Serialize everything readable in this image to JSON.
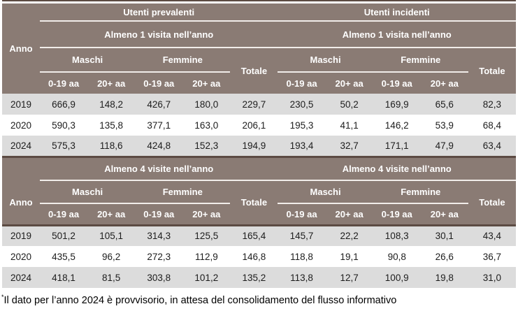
{
  "colors": {
    "header_background": "#8a7b74",
    "dark_rule": "#5c4b43",
    "row_alternate_gray": "#dcdcdc",
    "header_text": "#ffffff",
    "body_text": "#1d1d1d"
  },
  "table": {
    "labels": {
      "anno": "Anno",
      "utenti_prevalenti": "Utenti prevalenti",
      "utenti_incidenti": "Utenti incidenti",
      "maschi": "Maschi",
      "femmine": "Femmine",
      "totale": "Totale",
      "age_0_19": "0-19 aa",
      "age_20_plus": "20+ aa"
    },
    "sections": [
      {
        "visit_label": "Almeno 1 visita nell’anno",
        "rows": [
          {
            "anno": "2019",
            "values": [
              "666,9",
              "148,2",
              "426,7",
              "180,0",
              "229,7",
              "230,5",
              "50,2",
              "169,9",
              "65,6",
              "82,3"
            ]
          },
          {
            "anno": "2020",
            "values": [
              "590,3",
              "135,8",
              "377,1",
              "163,0",
              "206,1",
              "195,3",
              "41,1",
              "146,2",
              "53,9",
              "68,4"
            ]
          },
          {
            "anno": "2024",
            "values": [
              "575,3",
              "118,6",
              "424,8",
              "152,3",
              "194,9",
              "193,4",
              "32,7",
              "171,1",
              "47,9",
              "63,4"
            ]
          }
        ]
      },
      {
        "visit_label": "Almeno 4 visite nell’anno",
        "rows": [
          {
            "anno": "2019",
            "values": [
              "501,2",
              "105,1",
              "314,3",
              "125,5",
              "165,4",
              "145,7",
              "22,2",
              "108,3",
              "30,1",
              "43,4"
            ]
          },
          {
            "anno": "2020",
            "values": [
              "435,5",
              "96,2",
              "272,3",
              "112,9",
              "146,8",
              "118,8",
              "19,1",
              "90,8",
              "26,6",
              "36,7"
            ]
          },
          {
            "anno": "2024",
            "values": [
              "418,1",
              "81,5",
              "303,8",
              "101,2",
              "135,2",
              "113,8",
              "12,7",
              "100,9",
              "19,8",
              "31,0"
            ]
          }
        ]
      }
    ]
  },
  "footnote": {
    "marker": "*",
    "text": "Il dato per l’anno 2024 è provvisorio, in attesa del consolidamento del flusso informativo"
  }
}
